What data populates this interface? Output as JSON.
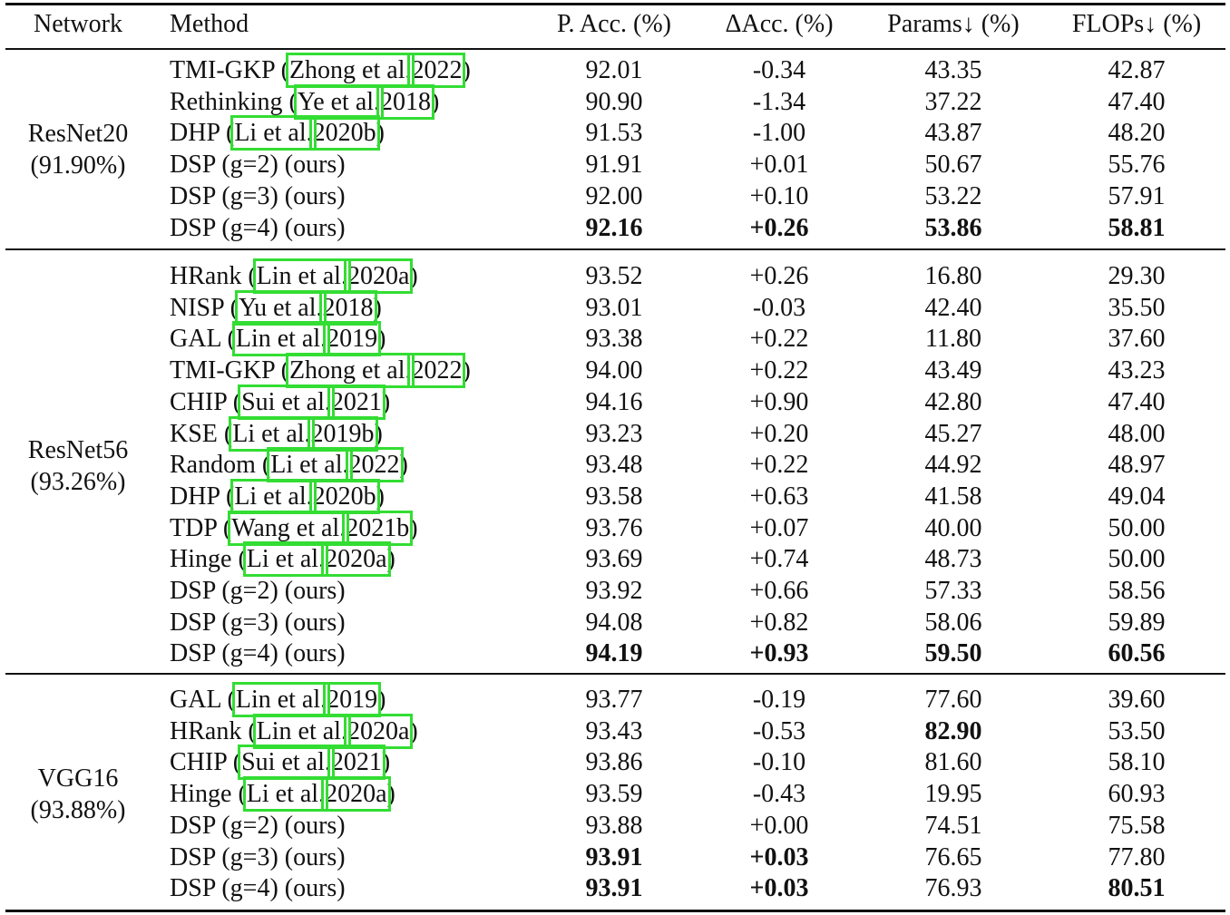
{
  "headers": {
    "network": "Network",
    "method": "Method",
    "pacc": "P. Acc. (%)",
    "dacc": "ΔAcc. (%)",
    "params": "Params↓ (%)",
    "flops": "FLOPs↓ (%)"
  },
  "groups": [
    {
      "network": "ResNet20",
      "baseline": "(91.90%)",
      "rows": [
        {
          "name": "TMI-GKP",
          "cite": [
            "Zhong et al.",
            "2022"
          ],
          "pacc": "92.01",
          "dacc": "-0.34",
          "params": "43.35",
          "flops": "42.87",
          "bold": []
        },
        {
          "name": "Rethinking",
          "cite": [
            "Ye et al.",
            "2018"
          ],
          "pacc": "90.90",
          "dacc": "-1.34",
          "params": "37.22",
          "flops": "47.40",
          "bold": []
        },
        {
          "name": "DHP",
          "cite": [
            "Li et al.",
            "2020b"
          ],
          "pacc": "91.53",
          "dacc": "-1.00",
          "params": "43.87",
          "flops": "48.20",
          "bold": []
        },
        {
          "name": "DSP (g=2) (ours)",
          "cite": null,
          "pacc": "91.91",
          "dacc": "+0.01",
          "params": "50.67",
          "flops": "55.76",
          "bold": []
        },
        {
          "name": "DSP (g=3) (ours)",
          "cite": null,
          "pacc": "92.00",
          "dacc": "+0.10",
          "params": "53.22",
          "flops": "57.91",
          "bold": []
        },
        {
          "name": "DSP (g=4) (ours)",
          "cite": null,
          "pacc": "92.16",
          "dacc": "+0.26",
          "params": "53.86",
          "flops": "58.81",
          "bold": [
            "pacc",
            "dacc",
            "params",
            "flops"
          ]
        }
      ]
    },
    {
      "network": "ResNet56",
      "baseline": "(93.26%)",
      "rows": [
        {
          "name": "HRank",
          "cite": [
            "Lin et al.",
            "2020a"
          ],
          "pacc": "93.52",
          "dacc": "+0.26",
          "params": "16.80",
          "flops": "29.30",
          "bold": []
        },
        {
          "name": "NISP",
          "cite": [
            "Yu et al.",
            "2018"
          ],
          "pacc": "93.01",
          "dacc": "-0.03",
          "params": "42.40",
          "flops": "35.50",
          "bold": []
        },
        {
          "name": "GAL",
          "cite": [
            "Lin et al.",
            "2019"
          ],
          "pacc": "93.38",
          "dacc": "+0.22",
          "params": "11.80",
          "flops": "37.60",
          "bold": []
        },
        {
          "name": "TMI-GKP",
          "cite": [
            "Zhong et al.",
            "2022"
          ],
          "pacc": "94.00",
          "dacc": "+0.22",
          "params": "43.49",
          "flops": "43.23",
          "bold": []
        },
        {
          "name": "CHIP",
          "cite": [
            "Sui et al.",
            "2021"
          ],
          "pacc": "94.16",
          "dacc": "+0.90",
          "params": "42.80",
          "flops": "47.40",
          "bold": []
        },
        {
          "name": "KSE",
          "cite": [
            "Li et al.",
            "2019b"
          ],
          "pacc": "93.23",
          "dacc": "+0.20",
          "params": "45.27",
          "flops": "48.00",
          "bold": []
        },
        {
          "name": "Random",
          "cite": [
            "Li et al.",
            "2022"
          ],
          "pacc": "93.48",
          "dacc": "+0.22",
          "params": "44.92",
          "flops": "48.97",
          "bold": []
        },
        {
          "name": "DHP",
          "cite": [
            "Li et al.",
            "2020b"
          ],
          "pacc": "93.58",
          "dacc": "+0.63",
          "params": "41.58",
          "flops": "49.04",
          "bold": []
        },
        {
          "name": "TDP",
          "cite": [
            "Wang et al.",
            "2021b"
          ],
          "pacc": "93.76",
          "dacc": "+0.07",
          "params": "40.00",
          "flops": "50.00",
          "bold": []
        },
        {
          "name": "Hinge",
          "cite": [
            "Li et al.",
            "2020a"
          ],
          "pacc": "93.69",
          "dacc": "+0.74",
          "params": "48.73",
          "flops": "50.00",
          "bold": []
        },
        {
          "name": "DSP (g=2) (ours)",
          "cite": null,
          "pacc": "93.92",
          "dacc": "+0.66",
          "params": "57.33",
          "flops": "58.56",
          "bold": []
        },
        {
          "name": "DSP (g=3) (ours)",
          "cite": null,
          "pacc": "94.08",
          "dacc": "+0.82",
          "params": "58.06",
          "flops": "59.89",
          "bold": []
        },
        {
          "name": "DSP (g=4) (ours)",
          "cite": null,
          "pacc": "94.19",
          "dacc": "+0.93",
          "params": "59.50",
          "flops": "60.56",
          "bold": [
            "pacc",
            "dacc",
            "params",
            "flops"
          ]
        }
      ]
    },
    {
      "network": "VGG16",
      "baseline": "(93.88%)",
      "rows": [
        {
          "name": "GAL",
          "cite": [
            "Lin et al.",
            "2019"
          ],
          "pacc": "93.77",
          "dacc": "-0.19",
          "params": "77.60",
          "flops": "39.60",
          "bold": []
        },
        {
          "name": "HRank",
          "cite": [
            "Lin et al.",
            "2020a"
          ],
          "pacc": "93.43",
          "dacc": "-0.53",
          "params": "82.90",
          "flops": "53.50",
          "bold": [
            "params"
          ]
        },
        {
          "name": "CHIP",
          "cite": [
            "Sui et al.",
            "2021"
          ],
          "pacc": "93.86",
          "dacc": "-0.10",
          "params": "81.60",
          "flops": "58.10",
          "bold": []
        },
        {
          "name": "Hinge",
          "cite": [
            "Li et al.",
            "2020a"
          ],
          "pacc": "93.59",
          "dacc": "-0.43",
          "params": "19.95",
          "flops": "60.93",
          "bold": []
        },
        {
          "name": "DSP (g=2) (ours)",
          "cite": null,
          "pacc": "93.88",
          "dacc": "+0.00",
          "params": "74.51",
          "flops": "75.58",
          "bold": []
        },
        {
          "name": "DSP (g=3) (ours)",
          "cite": null,
          "pacc": "93.91",
          "dacc": "+0.03",
          "params": "76.65",
          "flops": "77.80",
          "bold": [
            "pacc",
            "dacc"
          ]
        },
        {
          "name": "DSP (g=4) (ours)",
          "cite": null,
          "pacc": "93.91",
          "dacc": "+0.03",
          "params": "76.93",
          "flops": "80.51",
          "bold": [
            "pacc",
            "dacc",
            "flops"
          ]
        }
      ]
    }
  ]
}
